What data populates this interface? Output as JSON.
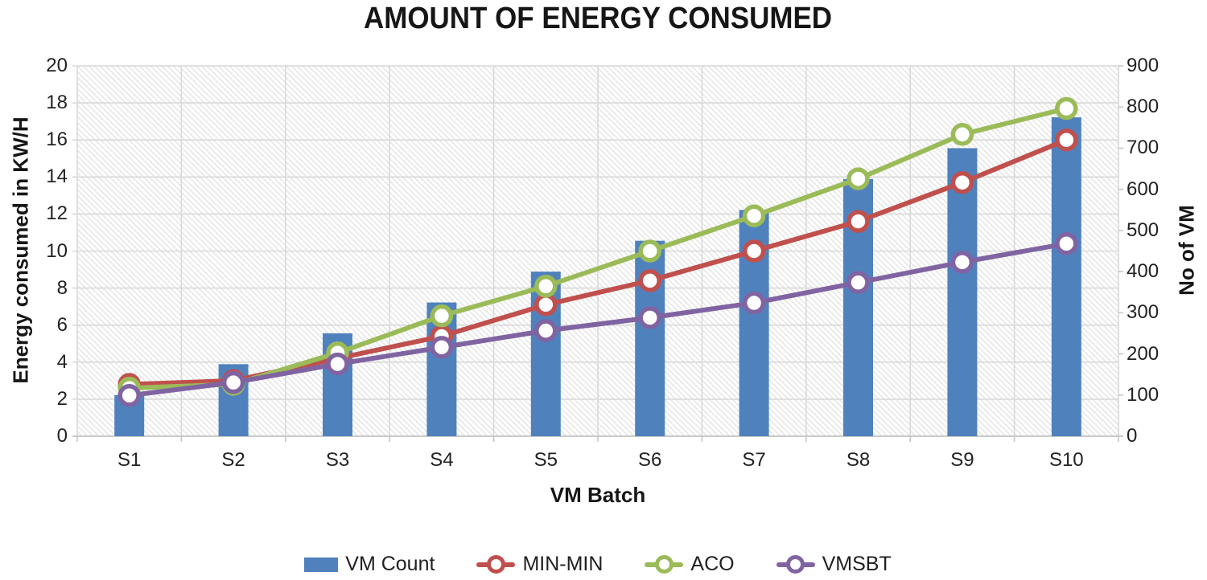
{
  "title": "AMOUNT OF ENERGY CONSUMED",
  "chart_data": {
    "type": "combo-bar-line",
    "title": "AMOUNT OF ENERGY CONSUMED",
    "xlabel": "VM Batch",
    "ylabel_left": "Energy consumed in KW/H",
    "ylabel_right": "No of VM",
    "categories": [
      "S1",
      "S2",
      "S3",
      "S4",
      "S5",
      "S6",
      "S7",
      "S8",
      "S9",
      "S10"
    ],
    "ylim_left": [
      0,
      20
    ],
    "ytick_step_left": 2,
    "ylim_right": [
      0,
      900
    ],
    "ytick_step_right": 100,
    "grid": true,
    "plot_background": "diagonal-hatch",
    "legend_position": "bottom",
    "bar_series": {
      "name": "VM Count",
      "axis": "right",
      "color": "#4f81bd",
      "values": [
        100,
        175,
        250,
        325,
        400,
        475,
        550,
        625,
        700,
        775
      ]
    },
    "line_series": [
      {
        "name": "MIN-MIN",
        "axis": "left",
        "color": "#c0504d",
        "values": [
          2.8,
          3.0,
          4.2,
          5.4,
          7.1,
          8.4,
          10.0,
          11.6,
          13.7,
          16.0
        ]
      },
      {
        "name": "ACO",
        "axis": "left",
        "color": "#9bbb59",
        "values": [
          2.6,
          2.8,
          4.5,
          6.5,
          8.1,
          10.0,
          11.9,
          13.9,
          16.3,
          17.7
        ]
      },
      {
        "name": "VMSBT",
        "axis": "left",
        "color": "#8064a2",
        "values": [
          2.2,
          2.9,
          3.9,
          4.8,
          5.7,
          6.4,
          7.2,
          8.3,
          9.4,
          10.4
        ]
      }
    ],
    "marker_style": "circle-white-fill",
    "gridline_color": "#d9d9d9",
    "text_color": "#1f1f1f"
  }
}
